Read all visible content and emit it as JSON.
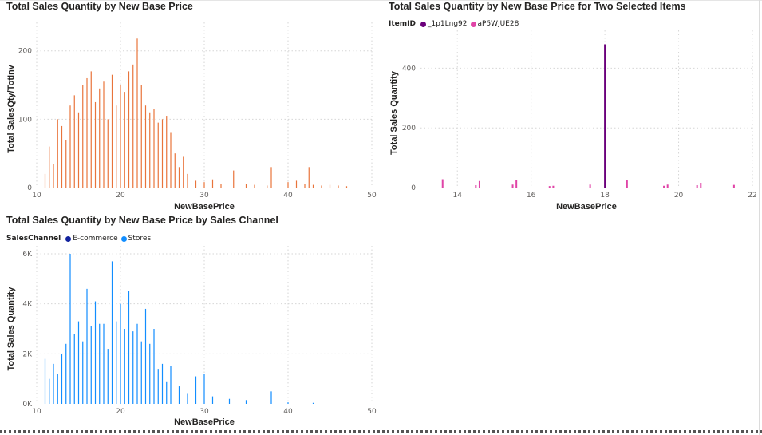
{
  "charts": [
    {
      "id": "c1",
      "title": "Total Sales Quantity by New Base Price",
      "chart_data": {
        "type": "bar",
        "title": "Total Sales Quantity by New Base Price",
        "xlabel": "NewBasePrice",
        "ylabel": "Total SalesQty/TotInv",
        "xlim": [
          10,
          50
        ],
        "ylim": [
          0,
          230
        ],
        "x_ticks": [
          10,
          20,
          30,
          40,
          50
        ],
        "y_ticks": [
          0,
          100,
          200
        ],
        "y_tick_labels": [
          "0",
          "100",
          "200"
        ],
        "grid": true,
        "color": "#E8743B",
        "series": [
          {
            "x": [
              11.0,
              11.5,
              12.0,
              12.5,
              13.0,
              13.5,
              14.0,
              14.5,
              15.0,
              15.5,
              16.0,
              16.5,
              17.0,
              17.5,
              18.0,
              18.5,
              19.0,
              19.5,
              20.0,
              20.5,
              21.0,
              21.5,
              22.0,
              22.5,
              23.0,
              23.5,
              24.0,
              24.5,
              25.0,
              25.5,
              26.0,
              26.5,
              27.0,
              27.5,
              28.0,
              29.0,
              30.0,
              31.0,
              32.0,
              33.5,
              35.0,
              36.0,
              37.5,
              38.0,
              40.0,
              41.0,
              42.0,
              42.5,
              43.0,
              44.0,
              45.0,
              46.0,
              47.0
            ],
            "values": [
              20,
              60,
              35,
              100,
              90,
              70,
              120,
              135,
              110,
              150,
              160,
              170,
              125,
              145,
              155,
              100,
              165,
              120,
              150,
              140,
              170,
              180,
              218,
              150,
              120,
              110,
              115,
              95,
              100,
              105,
              80,
              50,
              30,
              45,
              20,
              10,
              8,
              12,
              5,
              25,
              5,
              4,
              3,
              30,
              8,
              10,
              5,
              30,
              4,
              3,
              4,
              3,
              2
            ]
          }
        ]
      }
    },
    {
      "id": "c2",
      "title": "Total Sales Quantity by New Base Price for Two Selected Items",
      "legend_title": "ItemID",
      "chart_data": {
        "type": "bar",
        "title": "Total Sales Quantity by New Base Price for Two Selected Items",
        "xlabel": "NewBasePrice",
        "ylabel": "Total Sales Quantity",
        "xlim": [
          13,
          22
        ],
        "ylim": [
          0,
          500
        ],
        "x_ticks": [
          14,
          16,
          18,
          20,
          22
        ],
        "y_ticks": [
          0,
          200,
          400
        ],
        "y_tick_labels": [
          "0",
          "200",
          "400"
        ],
        "grid": true,
        "series": [
          {
            "name": "_1p1Lng92",
            "color": "#6B007B",
            "x": [
              18.0
            ],
            "values": [
              480
            ]
          },
          {
            "name": "aP5WjUE28",
            "color": "#E044A7",
            "x": [
              13.6,
              14.5,
              14.6,
              15.5,
              15.6,
              16.5,
              16.6,
              17.6,
              18.6,
              19.6,
              19.7,
              20.5,
              20.6,
              21.5
            ],
            "values": [
              28,
              8,
              22,
              10,
              26,
              5,
              6,
              10,
              24,
              6,
              10,
              8,
              16,
              9
            ]
          }
        ]
      }
    },
    {
      "id": "c3",
      "title": "Total Sales Quantity by New Base Price by Sales Channel",
      "legend_title": "SalesChannel",
      "chart_data": {
        "type": "bar",
        "title": "Total Sales Quantity by New Base Price by Sales Channel",
        "xlabel": "NewBasePrice",
        "ylabel": "Total Sales Quantity",
        "xlim": [
          10,
          50
        ],
        "ylim": [
          0,
          6000
        ],
        "x_ticks": [
          10,
          20,
          30,
          40,
          50
        ],
        "y_ticks": [
          0,
          2000,
          4000,
          6000
        ],
        "y_tick_labels": [
          "0K",
          "2K",
          "4K",
          "6K"
        ],
        "grid": true,
        "series": [
          {
            "name": "E-commerce",
            "color": "#12239E",
            "x": [],
            "values": []
          },
          {
            "name": "Stores",
            "color": "#118DFF",
            "x": [
              11.0,
              11.5,
              12.0,
              12.5,
              13.0,
              13.5,
              14.0,
              14.5,
              15.0,
              15.5,
              16.0,
              16.5,
              17.0,
              17.5,
              18.0,
              18.5,
              19.0,
              19.5,
              20.0,
              20.5,
              21.0,
              21.5,
              22.0,
              22.5,
              23.0,
              23.5,
              24.0,
              24.5,
              25.0,
              25.5,
              26.0,
              27.0,
              28.0,
              29.0,
              30.0,
              31.0,
              33.0,
              35.0,
              38.0,
              40.0,
              43.0
            ],
            "values": [
              1800,
              1000,
              1600,
              1200,
              2000,
              2400,
              6000,
              2800,
              3300,
              2500,
              4600,
              3100,
              4100,
              3200,
              3200,
              2200,
              5700,
              3300,
              4000,
              3000,
              4500,
              2900,
              3200,
              2500,
              3800,
              2400,
              3000,
              1400,
              1600,
              900,
              1500,
              700,
              400,
              1100,
              1200,
              300,
              200,
              150,
              500,
              60,
              40
            ]
          }
        ]
      }
    }
  ]
}
